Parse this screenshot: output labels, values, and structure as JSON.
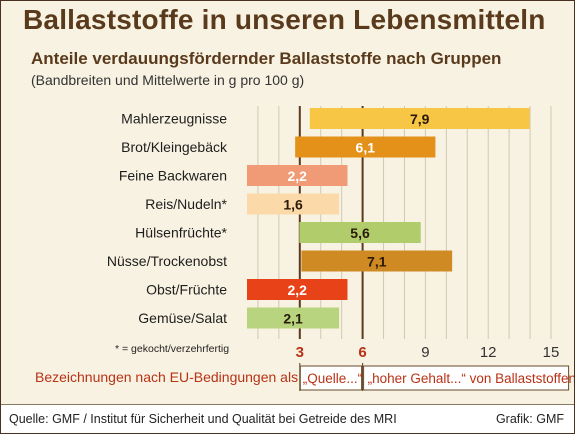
{
  "title": "Ballaststoffe in unseren Lebensmitteln",
  "subtitle": "Anteile verdauungsfördernder Ballaststoffe nach Gruppen",
  "note": "(Bandbreiten und Mittelwerte in g pro 100 g)",
  "footnote": "* = gekocht/verzehrfertig",
  "eu_label": "Bezeichnungen nach EU-Bedingungen als",
  "eu_quelle": "„Quelle...“",
  "eu_hoher": "„hoher Gehalt...“ von Ballaststoffen",
  "source": "Quelle: GMF / Institut für Sicherheit und Qualität bei Getreide des MRI",
  "credit": "Grafik: GMF",
  "colors": {
    "title": "#5a3a1c",
    "threshold_text": "#b83216",
    "threshold_line": "#5a3a1c"
  },
  "chart_data": {
    "type": "bar",
    "orientation": "horizontal",
    "categories": [
      "Mahlerzeugnisse",
      "Brot/Kleingebäck",
      "Feine Backwaren",
      "Reis/Nudeln*",
      "Hülsenfrüchte*",
      "Nüsse/Trockenobst",
      "Obst/Früchte",
      "Gemüse/Salat"
    ],
    "ranges": [
      [
        3,
        13.5
      ],
      [
        2.3,
        9
      ],
      [
        0,
        4.8
      ],
      [
        0,
        4.4
      ],
      [
        2.5,
        8.3
      ],
      [
        2.6,
        9.8
      ],
      [
        0,
        4.8
      ],
      [
        0,
        4.4
      ]
    ],
    "values": [
      7.9,
      6.1,
      2.2,
      1.6,
      5.6,
      7.1,
      2.2,
      2.1
    ],
    "value_labels": [
      "7,9",
      "6,1",
      "2,2",
      "1,6",
      "5,6",
      "7,1",
      "2,2",
      "2,1"
    ],
    "bar_colors": [
      "#f6c644",
      "#e4911a",
      "#f19a76",
      "#fbd9a8",
      "#b1cd6b",
      "#cf8a24",
      "#e84318",
      "#b8d47e"
    ],
    "label_colors": [
      "#2a1a0a",
      "#ffffff",
      "#ffffff",
      "#2a1a0a",
      "#2a1a0a",
      "#2a1a0a",
      "#ffffff",
      "#2a1a0a"
    ],
    "xticks": [
      3,
      6,
      9,
      12,
      15
    ],
    "xtick_labels": [
      "3",
      "6",
      "9",
      "12",
      "15"
    ],
    "highlighted_ticks": [
      3,
      6
    ],
    "xlim": [
      0,
      15
    ],
    "thresholds": [
      3,
      6
    ],
    "grid": true
  }
}
